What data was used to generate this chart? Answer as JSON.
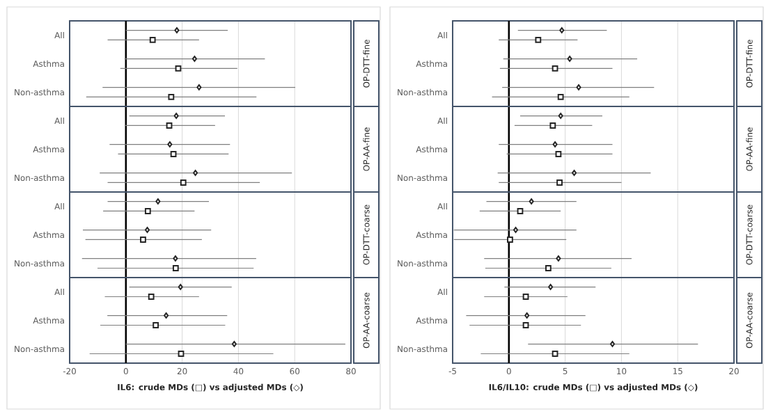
{
  "chart_data": [
    {
      "type": "scatter",
      "orientation": "horizontal",
      "categories": [
        "All",
        "Asthma",
        "Non-asthma",
        "All",
        "Asthma",
        "Non-asthma",
        "All",
        "Asthma",
        "Non-asthma",
        "All",
        "Asthma",
        "Non-asthma"
      ],
      "xlabel": "IL6: crude MDs (□) vs adjusted MDs (◇)",
      "xlim": [
        -20,
        80
      ],
      "xticks": [
        -20,
        0,
        20,
        40,
        60,
        80
      ],
      "grid": "x",
      "ref_lines": [
        {
          "axis": "x",
          "value": 0,
          "color": "#000000"
        }
      ],
      "annotations": [
        "OP-DTT-fine",
        "OP-AA-fine",
        "OP-DTT-coarse",
        "OP-AA-coarse"
      ],
      "series": [
        {
          "color": "#262626",
          "marker": "diamond",
          "values": [
            18.1,
            24.4,
            26,
            17.9,
            15.6,
            24.7,
            11.4,
            7.6,
            17.6,
            19.4,
            14.3,
            38.5
          ],
          "errors": [
            [
              0,
              36.2
            ],
            [
              -0.5,
              49.4
            ],
            [
              -8.3,
              60.2
            ],
            [
              1.2,
              35.2
            ],
            [
              -5.8,
              37
            ],
            [
              -9.3,
              59
            ],
            [
              -6.5,
              29.5
            ],
            [
              -15.3,
              30.3
            ],
            [
              -15.6,
              46.3
            ],
            [
              1.2,
              37.6
            ],
            [
              -6.6,
              36
            ],
            [
              0,
              78
            ]
          ]
        },
        {
          "color": "#262626",
          "marker": "square",
          "values": [
            9.5,
            18.6,
            16.1,
            15.4,
            16.9,
            20.4,
            7.8,
            6.1,
            17.7,
            9,
            10.6,
            19.6
          ],
          "errors": [
            [
              -6.5,
              26
            ],
            [
              -2,
              39.6
            ],
            [
              -14.1,
              46.4
            ],
            [
              -0.2,
              31.7
            ],
            [
              -2.8,
              36.5
            ],
            [
              -6.5,
              47.6
            ],
            [
              -8.1,
              24.4
            ],
            [
              -14.4,
              27
            ],
            [
              -10.1,
              45.4
            ],
            [
              -7.5,
              26
            ],
            [
              -9.1,
              35.3
            ],
            [
              -12.9,
              52.4
            ]
          ]
        }
      ]
    },
    {
      "type": "scatter",
      "orientation": "horizontal",
      "categories": [
        "All",
        "Asthma",
        "Non-asthma",
        "All",
        "Asthma",
        "Non-asthma",
        "All",
        "Asthma",
        "Non-asthma",
        "All",
        "Asthma",
        "Non-asthma"
      ],
      "xlabel": "IL6/IL10: crude MDs (□) vs adjusted MDs (◇)",
      "xlim": [
        -5,
        20
      ],
      "xticks": [
        -5,
        0,
        5,
        10,
        15,
        20
      ],
      "grid": "x",
      "ref_lines": [
        {
          "axis": "x",
          "value": 0,
          "color": "#000000"
        }
      ],
      "annotations": [
        "OP-DTT-fine",
        "OP-AA-fine",
        "OP-DTT-coarse",
        "OP-AA-coarse"
      ],
      "series": [
        {
          "color": "#262626",
          "marker": "diamond",
          "values": [
            4.7,
            5.4,
            6.2,
            4.6,
            4.1,
            5.8,
            2,
            0.6,
            4.4,
            3.7,
            1.6,
            9.2
          ],
          "errors": [
            [
              0.8,
              8.7
            ],
            [
              -0.5,
              11.4
            ],
            [
              -0.6,
              12.9
            ],
            [
              1,
              8.3
            ],
            [
              -0.9,
              9.2
            ],
            [
              -1,
              12.6
            ],
            [
              -2,
              6
            ],
            [
              -4.9,
              6
            ],
            [
              -2.2,
              10.9
            ],
            [
              -0.4,
              7.7
            ],
            [
              -3.8,
              6.8
            ],
            [
              1.7,
              16.8
            ]
          ]
        },
        {
          "color": "#262626",
          "marker": "square",
          "values": [
            2.6,
            4.1,
            4.6,
            3.9,
            4.4,
            4.5,
            1,
            0.1,
            3.5,
            1.5,
            1.5,
            4.1
          ],
          "errors": [
            [
              -0.9,
              6.1
            ],
            [
              -0.8,
              9.2
            ],
            [
              -1.5,
              10.7
            ],
            [
              0.5,
              7.4
            ],
            [
              -0.2,
              9.2
            ],
            [
              -0.9,
              10
            ],
            [
              -2.6,
              4.6
            ],
            [
              -4.9,
              5.1
            ],
            [
              -2.1,
              9.1
            ],
            [
              -2.2,
              5.2
            ],
            [
              -3.5,
              6.4
            ],
            [
              -2.5,
              10.7
            ]
          ]
        }
      ]
    }
  ]
}
